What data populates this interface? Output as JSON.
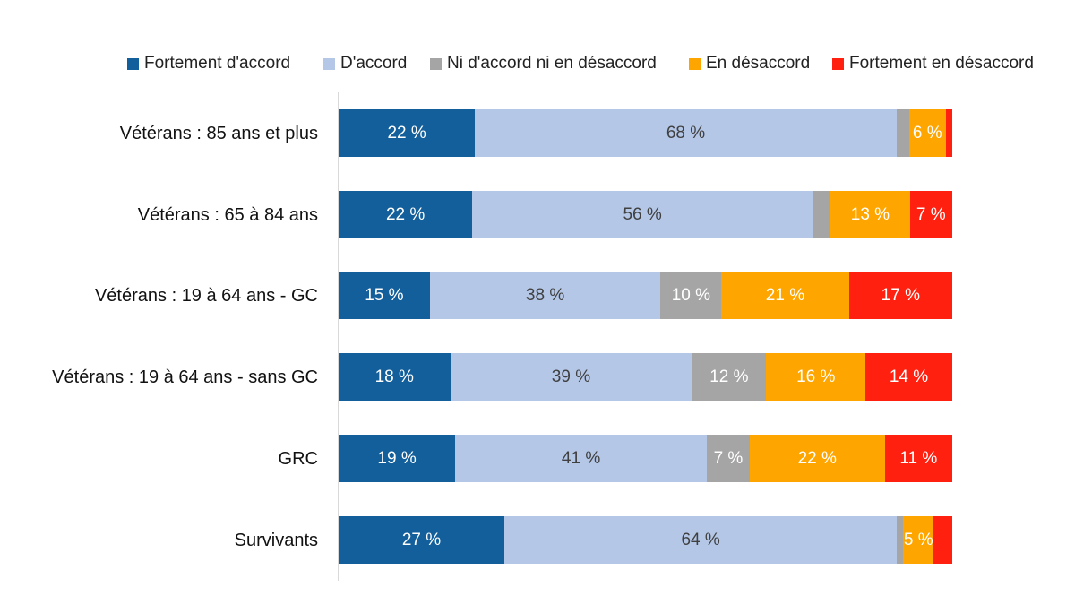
{
  "chart_data": {
    "type": "bar",
    "orientation": "horizontal",
    "stacked": "100%",
    "title": "",
    "xlabel": "",
    "ylabel": "",
    "xlim": [
      0,
      100
    ],
    "grid": false,
    "legend_position": "top",
    "categories": [
      "Vétérans : 85 ans et plus",
      "Vétérans : 65 à 84 ans",
      "Vétérans : 19 à 64 ans - GC",
      "Vétérans : 19 à 64 ans - sans GC",
      "GRC",
      "Survivants"
    ],
    "series": [
      {
        "name": "Fortement d'accord",
        "color": "#135f9b",
        "values": [
          22,
          22,
          15,
          18,
          19,
          27
        ],
        "labels": [
          "22 %",
          "22 %",
          "15 %",
          "18 %",
          "19 %",
          "27 %"
        ]
      },
      {
        "name": "D'accord",
        "color": "#b4c7e7",
        "values": [
          68,
          56,
          38,
          39,
          41,
          64
        ],
        "labels": [
          "68 %",
          "56 %",
          "38 %",
          "39 %",
          "41 %",
          "64 %"
        ]
      },
      {
        "name": "Ni d'accord ni en désaccord",
        "color": "#a5a5a5",
        "values": [
          2,
          3,
          10,
          12,
          7,
          1
        ],
        "labels": [
          "",
          "",
          "10 %",
          "12 %",
          "7 %",
          ""
        ]
      },
      {
        "name": "En désaccord",
        "color": "#ffa500",
        "values": [
          6,
          13,
          21,
          16,
          22,
          5
        ],
        "labels": [
          "6 %",
          "13 %",
          "21 %",
          "16 %",
          "22 %",
          "5 %"
        ]
      },
      {
        "name": "Fortement en désaccord",
        "color": "#ff2010",
        "values": [
          1,
          7,
          17,
          14,
          11,
          3
        ],
        "labels": [
          "",
          "7 %",
          "17 %",
          "14 %",
          "11 %",
          ""
        ]
      }
    ]
  },
  "legend": [
    {
      "label": "Fortement d'accord",
      "color": "#135f9b"
    },
    {
      "label": "D'accord",
      "color": "#b4c7e7"
    },
    {
      "label": "Ni d'accord ni en désaccord",
      "color": "#a5a5a5"
    },
    {
      "label": "En désaccord",
      "color": "#ffa500"
    },
    {
      "label": "Fortement en désaccord",
      "color": "#ff2010"
    }
  ]
}
